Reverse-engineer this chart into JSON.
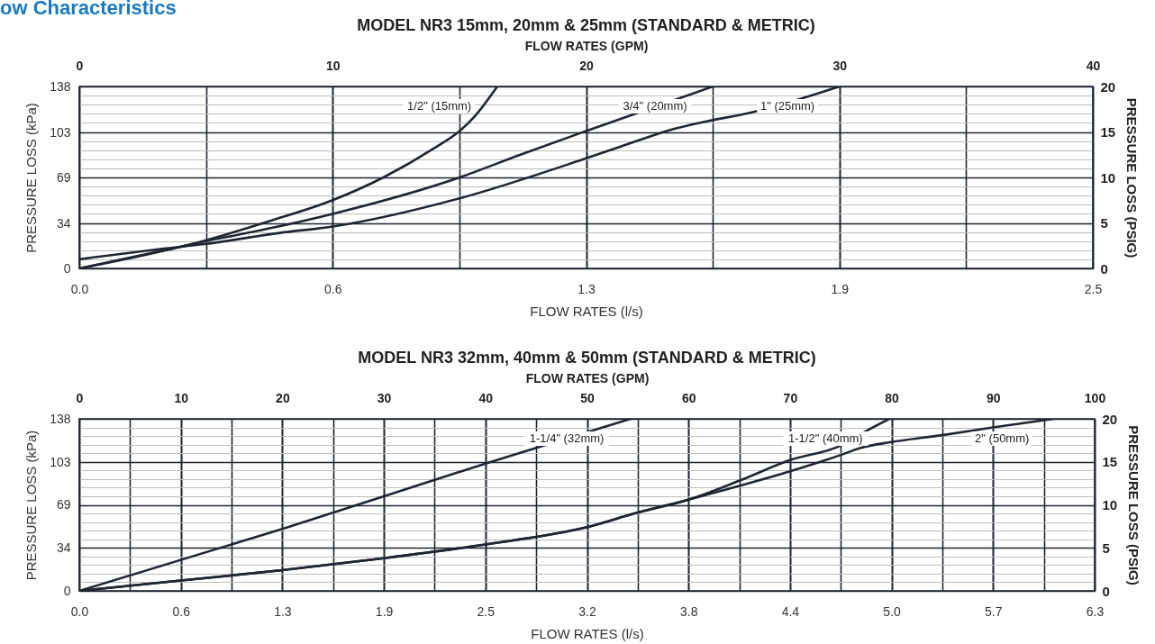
{
  "chart_data": [
    {
      "type": "line",
      "title": "MODEL NR3 15mm, 20mm & 25mm (STANDARD & METRIC)",
      "annotations": [
        "ow Characteristics"
      ],
      "xlabel": "FLOW RATES (l/s)",
      "x2label": "FLOW RATES (GPM)",
      "ylabel": "PRESSURE LOSS (kPa)",
      "y2label": "PRESSURE LOSS (PSIG)",
      "xlim": [
        0,
        2.5
      ],
      "xticks": [
        {
          "value": 0,
          "label": "0.0"
        },
        {
          "value": 0.625,
          "label": "0.6"
        },
        {
          "value": 1.25,
          "label": "1.3"
        },
        {
          "value": 1.875,
          "label": "1.9"
        },
        2.5
      ],
      "x2lim": [
        0,
        40
      ],
      "x2ticks": [
        0,
        {
          "value": 5,
          "label": null
        },
        10,
        {
          "value": 15,
          "label": null
        },
        20,
        {
          "value": 25,
          "label": null
        },
        30,
        {
          "value": 35,
          "label": null
        },
        40
      ],
      "ylim": [
        0,
        138
      ],
      "yticks": [
        0,
        34,
        69,
        103,
        138
      ],
      "y2lim": [
        0,
        20
      ],
      "y2ticks": [
        0,
        {
          "value": 1,
          "label": null
        },
        {
          "value": 2,
          "label": null
        },
        {
          "value": 3,
          "label": null
        },
        {
          "value": 4,
          "label": null
        },
        5,
        {
          "value": 6,
          "label": null
        },
        {
          "value": 7,
          "label": null
        },
        {
          "value": 8,
          "label": null
        },
        {
          "value": 9,
          "label": null
        },
        10,
        {
          "value": 11,
          "label": null
        },
        {
          "value": 12,
          "label": null
        },
        {
          "value": 13,
          "label": null
        },
        {
          "value": 14,
          "label": null
        },
        15,
        {
          "value": 16,
          "label": null
        },
        {
          "value": 17,
          "label": null
        },
        {
          "value": 18,
          "label": null
        },
        {
          "value": 19,
          "label": null
        },
        20
      ],
      "grid": true,
      "series": [
        {
          "name": "1/2\" (15mm)",
          "color": "#1f2630",
          "axis": "y2",
          "x": [
            0,
            0.313,
            0.469,
            0.625,
            0.75,
            0.875,
            0.938,
            0.975,
            1.031
          ],
          "values": [
            0,
            3.1,
            5.2,
            7.5,
            10,
            13.2,
            15.1,
            16.7,
            20
          ]
        },
        {
          "name": "3/4\" (20mm)",
          "color": "#1f2630",
          "axis": "y2",
          "x": [
            0,
            0.313,
            0.469,
            0.625,
            0.938,
            1.088,
            1.25,
            1.563
          ],
          "values": [
            0,
            3.0,
            4.4,
            6.0,
            10.0,
            12.5,
            15.1,
            20
          ]
        },
        {
          "name": "1\" (25mm)",
          "color": "#1f2630",
          "axis": "y2",
          "x": [
            0,
            0.213,
            0.313,
            0.494,
            0.625,
            0.938,
            1.25,
            1.375,
            1.456,
            1.563,
            1.644,
            1.875
          ],
          "values": [
            1.0,
            2.2,
            2.7,
            3.9,
            4.6,
            7.7,
            12.1,
            14.0,
            15.2,
            16.3,
            17.0,
            20
          ]
        }
      ]
    },
    {
      "type": "line",
      "title": "MODEL NR3 32mm, 40mm & 50mm (STANDARD & METRIC)",
      "xlabel": "FLOW RATES (l/s)",
      "x2label": "FLOW RATES (GPM)",
      "ylabel": "PRESSURE LOSS (kPa)",
      "y2label": "PRESSURE LOSS (PSIG)",
      "xlim": [
        0,
        6.3
      ],
      "xticks": [
        {
          "value": 0,
          "label": "0.0"
        },
        {
          "value": 0.63,
          "label": "0.6"
        },
        {
          "value": 1.26,
          "label": "1.3"
        },
        {
          "value": 1.89,
          "label": "1.9"
        },
        {
          "value": 2.52,
          "label": "2.5"
        },
        {
          "value": 3.15,
          "label": "3.2"
        },
        {
          "value": 3.78,
          "label": "3.8"
        },
        {
          "value": 4.41,
          "label": "4.4"
        },
        {
          "value": 5.04,
          "label": "5.0"
        },
        {
          "value": 5.67,
          "label": "5.7"
        },
        6.3
      ],
      "x2lim": [
        0,
        100
      ],
      "x2ticks": [
        0,
        {
          "value": 5,
          "label": null
        },
        10,
        {
          "value": 15,
          "label": null
        },
        20,
        {
          "value": 25,
          "label": null
        },
        30,
        {
          "value": 35,
          "label": null
        },
        40,
        {
          "value": 45,
          "label": null
        },
        50,
        {
          "value": 55,
          "label": null
        },
        60,
        {
          "value": 65,
          "label": null
        },
        70,
        {
          "value": 75,
          "label": null
        },
        80,
        {
          "value": 85,
          "label": null
        },
        90,
        {
          "value": 95,
          "label": null
        },
        100
      ],
      "ylim": [
        0,
        138
      ],
      "yticks": [
        0,
        34,
        69,
        103,
        138
      ],
      "y2lim": [
        0,
        20
      ],
      "y2ticks": [
        0,
        {
          "value": 1,
          "label": null
        },
        {
          "value": 2,
          "label": null
        },
        {
          "value": 3,
          "label": null
        },
        {
          "value": 4,
          "label": null
        },
        5,
        {
          "value": 6,
          "label": null
        },
        {
          "value": 7,
          "label": null
        },
        {
          "value": 8,
          "label": null
        },
        {
          "value": 9,
          "label": null
        },
        10,
        {
          "value": 11,
          "label": null
        },
        {
          "value": 12,
          "label": null
        },
        {
          "value": 13,
          "label": null
        },
        {
          "value": 14,
          "label": null
        },
        15,
        {
          "value": 16,
          "label": null
        },
        {
          "value": 17,
          "label": null
        },
        {
          "value": 18,
          "label": null
        },
        {
          "value": 19,
          "label": null
        },
        20
      ],
      "grid": true,
      "series": [
        {
          "name": "1-1/4\" (32mm)",
          "color": "#1f2630",
          "axis": "y2",
          "x": [
            0,
            1.26,
            2.52,
            3.421
          ],
          "values": [
            0,
            7.2,
            14.8,
            20
          ]
        },
        {
          "name": "1-1/2\" (40mm)",
          "color": "#1f2630",
          "axis": "y2",
          "x": [
            0,
            0.63,
            1.26,
            1.89,
            2.52,
            3.15,
            3.465,
            3.78,
            4.095,
            4.41,
            4.725,
            4.864,
            5.027
          ],
          "values": [
            0,
            1.2,
            2.4,
            3.8,
            5.4,
            7.4,
            9.1,
            10.6,
            12.8,
            15.2,
            16.9,
            18.4,
            20
          ]
        },
        {
          "name": "2\" (50mm)",
          "color": "#1f2630",
          "axis": "y2",
          "x": [
            0,
            0.63,
            1.26,
            1.89,
            2.52,
            3.15,
            3.465,
            3.78,
            4.095,
            4.41,
            4.725,
            4.845,
            5.04,
            5.355,
            5.67,
            6.048
          ],
          "values": [
            0,
            1.2,
            2.4,
            3.8,
            5.4,
            7.4,
            9.1,
            10.6,
            12.2,
            13.9,
            15.8,
            16.6,
            17.3,
            18.1,
            19.0,
            20
          ]
        }
      ]
    }
  ]
}
